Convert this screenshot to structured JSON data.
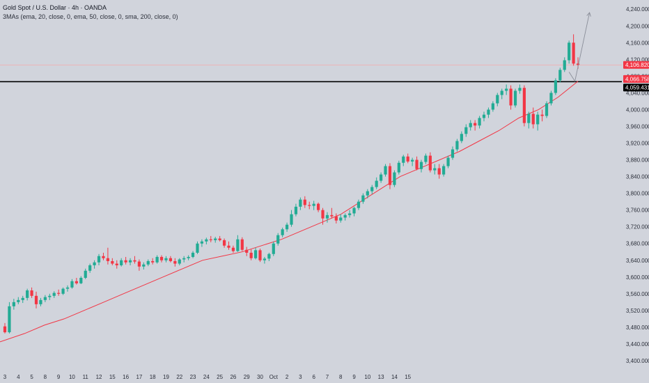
{
  "legend": {
    "title": "Gold Spot / U.S. Dollar · 4h · OANDA",
    "indicator": "3MAs (ema, 20, close, 0, ema, 50, close, 0, sma, 200, close, 0)"
  },
  "colors": {
    "background": "#d1d4dc",
    "up": "#22ab94",
    "down": "#f23645",
    "ma": "#f23645",
    "level_line": "#000000",
    "last_price_line": "#f7a9a9",
    "arrow": "#8a8e99",
    "axis_text": "#2a2e39"
  },
  "badges": [
    {
      "label": "4,106.820",
      "color": "#f23645"
    },
    {
      "label": "4,066.758",
      "color": "#f23645"
    },
    {
      "label": "4,059.431",
      "color": "#000000"
    }
  ],
  "chart_data": {
    "type": "candlestick",
    "symbol": "Gold Spot / U.S. Dollar",
    "timeframe": "4h",
    "exchange": "OANDA",
    "y_ticks": [
      3400,
      3440,
      3480,
      3520,
      3560,
      3600,
      3640,
      3680,
      3720,
      3760,
      3800,
      3840,
      3880,
      3920,
      3960,
      4000,
      4040,
      4080,
      4120,
      4160,
      4200,
      4240
    ],
    "y_tick_labels": [
      "3,400.000",
      "3,440.000",
      "3,480.000",
      "3,520.000",
      "3,560.000",
      "3,600.000",
      "3,640.000",
      "3,680.000",
      "3,720.000",
      "3,760.000",
      "3,800.000",
      "3,840.000",
      "3,880.000",
      "3,920.000",
      "3,960.000",
      "4,000.000",
      "4,040.000",
      "4,080.000",
      "4,120.000",
      "4,160.000",
      "4,200.000",
      "4,240.000"
    ],
    "y_range": [
      3380,
      4262
    ],
    "x_labels": [
      "3",
      "4",
      "5",
      "8",
      "9",
      "10",
      "11",
      "12",
      "15",
      "16",
      "17",
      "18",
      "19",
      "22",
      "23",
      "24",
      "25",
      "26",
      "29",
      "30",
      "Oct",
      "2",
      "3",
      "6",
      "7",
      "8",
      "9",
      "10",
      "13",
      "14",
      "15"
    ],
    "label_index": [
      0,
      3,
      6,
      9,
      12,
      15,
      18,
      21,
      24,
      27,
      30,
      33,
      36,
      39,
      42,
      45,
      48,
      51,
      54,
      57,
      60,
      63,
      66,
      69,
      72,
      75,
      78,
      81,
      84,
      87,
      90
    ],
    "candles": [
      [
        3482,
        3490,
        3465,
        3468
      ],
      [
        3468,
        3540,
        3465,
        3530
      ],
      [
        3530,
        3548,
        3522,
        3540
      ],
      [
        3540,
        3552,
        3535,
        3545
      ],
      [
        3545,
        3555,
        3538,
        3550
      ],
      [
        3550,
        3572,
        3544,
        3568
      ],
      [
        3568,
        3575,
        3550,
        3555
      ],
      [
        3555,
        3565,
        3525,
        3535
      ],
      [
        3535,
        3550,
        3530,
        3545
      ],
      [
        3545,
        3557,
        3540,
        3552
      ],
      [
        3552,
        3560,
        3545,
        3555
      ],
      [
        3555,
        3566,
        3550,
        3562
      ],
      [
        3562,
        3570,
        3555,
        3560
      ],
      [
        3560,
        3575,
        3557,
        3572
      ],
      [
        3572,
        3580,
        3565,
        3575
      ],
      [
        3575,
        3595,
        3572,
        3590
      ],
      [
        3590,
        3598,
        3582,
        3585
      ],
      [
        3585,
        3602,
        3583,
        3598
      ],
      [
        3598,
        3620,
        3595,
        3615
      ],
      [
        3615,
        3632,
        3610,
        3628
      ],
      [
        3628,
        3640,
        3620,
        3635
      ],
      [
        3635,
        3655,
        3628,
        3650
      ],
      [
        3650,
        3658,
        3640,
        3645
      ],
      [
        3645,
        3670,
        3630,
        3638
      ],
      [
        3638,
        3645,
        3628,
        3632
      ],
      [
        3632,
        3640,
        3620,
        3628
      ],
      [
        3628,
        3645,
        3625,
        3640
      ],
      [
        3640,
        3648,
        3630,
        3635
      ],
      [
        3635,
        3645,
        3628,
        3640
      ],
      [
        3640,
        3650,
        3632,
        3637
      ],
      [
        3637,
        3642,
        3615,
        3625
      ],
      [
        3625,
        3635,
        3618,
        3630
      ],
      [
        3630,
        3642,
        3626,
        3638
      ],
      [
        3638,
        3645,
        3630,
        3635
      ],
      [
        3635,
        3652,
        3632,
        3648
      ],
      [
        3648,
        3652,
        3635,
        3640
      ],
      [
        3640,
        3650,
        3635,
        3645
      ],
      [
        3645,
        3650,
        3635,
        3638
      ],
      [
        3638,
        3645,
        3625,
        3632
      ],
      [
        3632,
        3645,
        3628,
        3642
      ],
      [
        3642,
        3650,
        3635,
        3645
      ],
      [
        3645,
        3652,
        3640,
        3648
      ],
      [
        3648,
        3662,
        3645,
        3658
      ],
      [
        3658,
        3685,
        3655,
        3680
      ],
      [
        3680,
        3690,
        3672,
        3685
      ],
      [
        3685,
        3694,
        3678,
        3690
      ],
      [
        3690,
        3698,
        3683,
        3688
      ],
      [
        3688,
        3696,
        3682,
        3692
      ],
      [
        3692,
        3698,
        3685,
        3688
      ],
      [
        3688,
        3692,
        3670,
        3675
      ],
      [
        3675,
        3685,
        3665,
        3670
      ],
      [
        3670,
        3675,
        3658,
        3662
      ],
      [
        3662,
        3700,
        3660,
        3690
      ],
      [
        3690,
        3695,
        3662,
        3665
      ],
      [
        3665,
        3672,
        3650,
        3658
      ],
      [
        3658,
        3666,
        3640,
        3645
      ],
      [
        3645,
        3670,
        3642,
        3664
      ],
      [
        3664,
        3668,
        3636,
        3640
      ],
      [
        3640,
        3648,
        3632,
        3644
      ],
      [
        3644,
        3658,
        3638,
        3655
      ],
      [
        3655,
        3685,
        3650,
        3680
      ],
      [
        3680,
        3705,
        3675,
        3700
      ],
      [
        3700,
        3718,
        3695,
        3714
      ],
      [
        3714,
        3730,
        3708,
        3725
      ],
      [
        3725,
        3760,
        3720,
        3750
      ],
      [
        3750,
        3775,
        3745,
        3768
      ],
      [
        3768,
        3790,
        3760,
        3785
      ],
      [
        3785,
        3793,
        3765,
        3772
      ],
      [
        3772,
        3780,
        3762,
        3770
      ],
      [
        3770,
        3782,
        3760,
        3775
      ],
      [
        3775,
        3778,
        3755,
        3760
      ],
      [
        3760,
        3765,
        3725,
        3740
      ],
      [
        3740,
        3755,
        3730,
        3748
      ],
      [
        3748,
        3765,
        3740,
        3745
      ],
      [
        3745,
        3752,
        3728,
        3735
      ],
      [
        3735,
        3750,
        3730,
        3742
      ],
      [
        3742,
        3752,
        3735,
        3748
      ],
      [
        3748,
        3760,
        3742,
        3752
      ],
      [
        3752,
        3768,
        3745,
        3765
      ],
      [
        3765,
        3785,
        3760,
        3780
      ],
      [
        3780,
        3800,
        3775,
        3795
      ],
      [
        3795,
        3810,
        3788,
        3805
      ],
      [
        3805,
        3820,
        3798,
        3815
      ],
      [
        3815,
        3838,
        3810,
        3830
      ],
      [
        3830,
        3850,
        3825,
        3845
      ],
      [
        3845,
        3870,
        3840,
        3865
      ],
      [
        3865,
        3872,
        3810,
        3820
      ],
      [
        3820,
        3855,
        3815,
        3850
      ],
      [
        3850,
        3878,
        3845,
        3873
      ],
      [
        3873,
        3892,
        3865,
        3888
      ],
      [
        3888,
        3895,
        3872,
        3876
      ],
      [
        3876,
        3885,
        3865,
        3880
      ],
      [
        3880,
        3888,
        3855,
        3858
      ],
      [
        3858,
        3880,
        3850,
        3875
      ],
      [
        3875,
        3895,
        3870,
        3890
      ],
      [
        3890,
        3898,
        3850,
        3855
      ],
      [
        3855,
        3870,
        3845,
        3860
      ],
      [
        3860,
        3870,
        3835,
        3845
      ],
      [
        3845,
        3870,
        3840,
        3865
      ],
      [
        3865,
        3890,
        3860,
        3885
      ],
      [
        3885,
        3912,
        3880,
        3905
      ],
      [
        3905,
        3930,
        3900,
        3925
      ],
      [
        3925,
        3948,
        3920,
        3942
      ],
      [
        3942,
        3965,
        3935,
        3958
      ],
      [
        3958,
        3975,
        3950,
        3968
      ],
      [
        3968,
        3975,
        3950,
        3962
      ],
      [
        3962,
        3985,
        3955,
        3980
      ],
      [
        3980,
        3995,
        3972,
        3988
      ],
      [
        3988,
        4005,
        3980,
        4000
      ],
      [
        4000,
        4020,
        3995,
        4015
      ],
      [
        4015,
        4040,
        4008,
        4035
      ],
      [
        4035,
        4050,
        4025,
        4045
      ],
      [
        4045,
        4060,
        4035,
        4050
      ],
      [
        4050,
        4058,
        4000,
        4010
      ],
      [
        4010,
        4050,
        4005,
        4045
      ],
      [
        4045,
        4060,
        4038,
        4052
      ],
      [
        4052,
        4058,
        3960,
        3968
      ],
      [
        3968,
        3995,
        3955,
        3990
      ],
      [
        3990,
        4005,
        3955,
        3965
      ],
      [
        3965,
        3995,
        3950,
        3988
      ],
      [
        3988,
        4000,
        3972,
        3985
      ],
      [
        3985,
        4020,
        3980,
        4015
      ],
      [
        4015,
        4045,
        4010,
        4040
      ],
      [
        4040,
        4075,
        4035,
        4070
      ],
      [
        4070,
        4100,
        4065,
        4095
      ],
      [
        4095,
        4125,
        4090,
        4118
      ],
      [
        4118,
        4165,
        4110,
        4160
      ],
      [
        4160,
        4180,
        4105,
        4110
      ],
      [
        4110,
        4125,
        4098,
        4106.82
      ]
    ],
    "ma20": [
      3445,
      3465,
      3485,
      3500,
      3520,
      3540,
      3560,
      3580,
      3600,
      3620,
      3640,
      3650,
      3660,
      3675,
      3690,
      3710,
      3730,
      3750,
      3780,
      3810,
      3840,
      3860,
      3880,
      3900,
      3925,
      3950,
      3980,
      4000,
      4030,
      4068
    ],
    "horizontal_levels": [
      {
        "price": 4066.758,
        "color": "#000000",
        "width": 1.6
      },
      {
        "price": 4106.82,
        "color": "#f7a9a9",
        "width": 0.8
      }
    ],
    "projection_arrow": {
      "from_candle": 126,
      "from_price": 4090,
      "to_candle": 127,
      "to_price": 4068,
      "end_price": 4232
    },
    "last_price": 4106.82
  }
}
